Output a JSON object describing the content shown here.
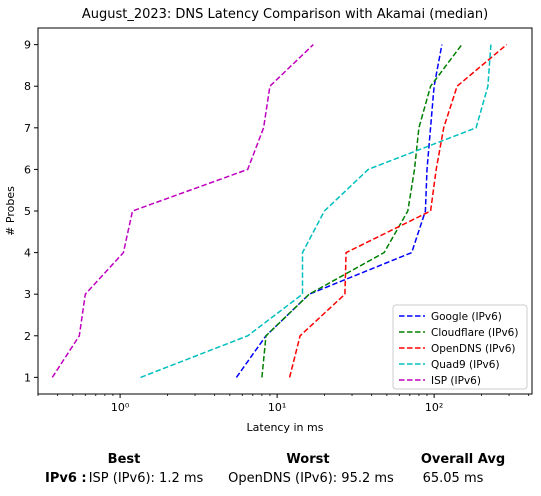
{
  "chart_data": {
    "type": "line",
    "title": "August_2023: DNS Latency Comparison with Akamai (median)",
    "xlabel": "Latency in ms",
    "ylabel": "# Probes",
    "xscale": "log",
    "xlim": [
      0.3,
      420
    ],
    "ylim": [
      0.6,
      9.4
    ],
    "xticks": [
      1,
      10,
      100
    ],
    "xtick_labels": [
      "10⁰",
      "10¹",
      "10²"
    ],
    "yticks": [
      1,
      2,
      3,
      4,
      5,
      6,
      7,
      8,
      9
    ],
    "grid": false,
    "legend_position": "lower-right",
    "series": [
      {
        "name": "Google (IPv6)",
        "color": "#0000ff",
        "x": [
          5.5,
          8.5,
          16,
          72,
          88,
          90,
          100,
          112
        ],
        "y": [
          1,
          2,
          3,
          4,
          5,
          6,
          8,
          9
        ]
      },
      {
        "name": "Cloudflare (IPv6)",
        "color": "#008000",
        "x": [
          8,
          8.5,
          16,
          48,
          68,
          75,
          80,
          95,
          150
        ],
        "y": [
          1,
          2,
          3,
          4,
          5,
          6,
          7,
          8,
          9
        ]
      },
      {
        "name": "OpenDNS (IPv6)",
        "color": "#ff0000",
        "x": [
          12,
          14,
          27,
          27.5,
          95,
          103,
          115,
          140,
          290
        ],
        "y": [
          1,
          2,
          3,
          4,
          5,
          6,
          7,
          8,
          9
        ]
      },
      {
        "name": "Quad9 (IPv6)",
        "color": "#00bfbf",
        "x": [
          1.35,
          6.5,
          14.5,
          14.5,
          20,
          38,
          185,
          220,
          230
        ],
        "y": [
          1,
          2,
          3,
          4,
          5,
          6,
          7,
          8,
          9
        ]
      },
      {
        "name": "ISP (IPv6)",
        "color": "#bf00bf",
        "x": [
          0.37,
          0.55,
          0.6,
          1.05,
          1.2,
          6.5,
          8.2,
          9,
          17
        ],
        "y": [
          1,
          2,
          3,
          4,
          5,
          6,
          7,
          8,
          9
        ]
      }
    ]
  },
  "summary": {
    "best_header": "Best",
    "worst_header": "Worst",
    "avg_header": "Overall Avg",
    "row_label": "IPv6 :",
    "best_value": "ISP (IPv6): 1.2 ms",
    "worst_value": "OpenDNS (IPv6): 95.2 ms",
    "avg_value": "65.05 ms"
  }
}
